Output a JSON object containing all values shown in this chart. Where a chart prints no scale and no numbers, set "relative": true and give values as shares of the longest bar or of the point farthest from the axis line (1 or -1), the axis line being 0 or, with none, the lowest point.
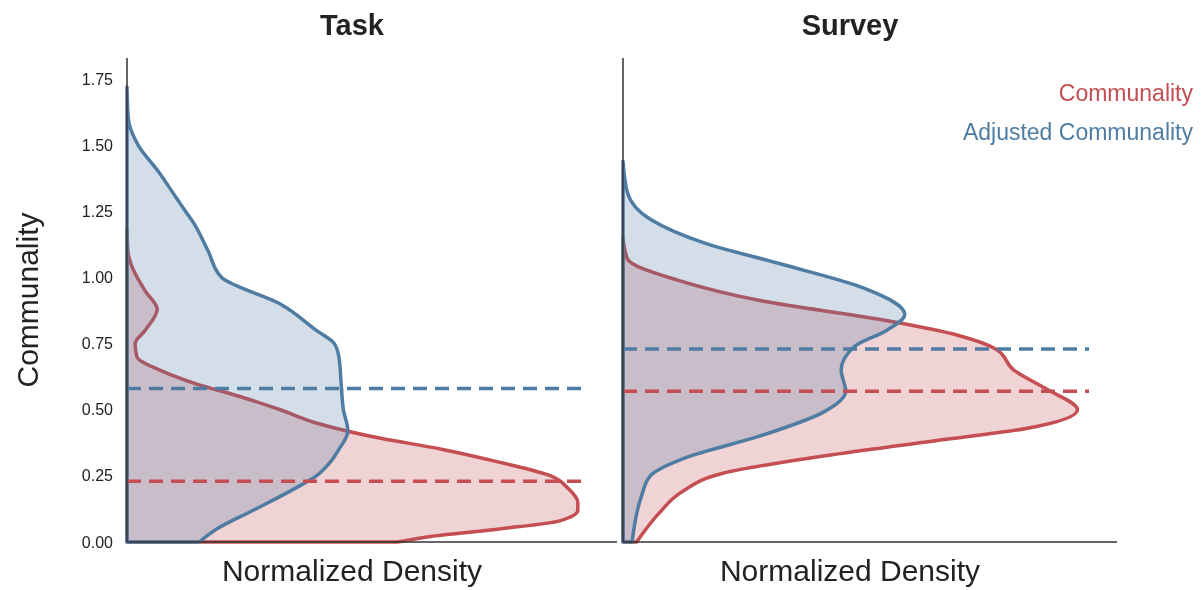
{
  "chart_data": [
    {
      "type": "area",
      "orientation": "horizontal",
      "relative": true,
      "title": "Task",
      "xlabel": "Normalized Density",
      "ylabel": "Communality",
      "ylim": [
        0,
        1.83
      ],
      "yticks": [
        {
          "value": 0,
          "label": "0.00"
        },
        {
          "value": 0.25,
          "label": "0.25"
        },
        {
          "value": 0.5,
          "label": "0.50"
        },
        {
          "value": 0.75,
          "label": "0.75"
        },
        {
          "value": 1,
          "label": "1.00"
        },
        {
          "value": 1.25,
          "label": "1.25"
        },
        {
          "value": 1.5,
          "label": "1.50"
        },
        {
          "value": 1.75,
          "label": "1.75"
        }
      ],
      "tick_labels": "y",
      "legend": false,
      "series": [
        {
          "color": "#c44e52",
          "x": [
            0,
            0.02,
            0.05,
            0.08,
            0.12,
            0.15,
            0.2,
            0.25,
            0.3,
            0.35,
            0.4,
            0.45,
            0.5,
            0.55,
            0.6,
            0.65,
            0.7,
            0.75,
            0.8,
            0.88,
            0.95,
            1.05,
            1.1,
            1.18
          ],
          "values": [
            0.6,
            0.67,
            0.83,
            0.96,
            1,
            1,
            0.98,
            0.94,
            0.83,
            0.7,
            0.54,
            0.42,
            0.34,
            0.25,
            0.15,
            0.073,
            0.022,
            0.018,
            0.04,
            0.067,
            0.04,
            0.009,
            0.002,
            0
          ]
        },
        {
          "color": "#4f7ca3",
          "x": [
            0,
            0.05,
            0.12,
            0.2,
            0.25,
            0.3,
            0.35,
            0.42,
            0.5,
            0.6,
            0.7,
            0.75,
            0.8,
            0.9,
            1,
            1.1,
            1.2,
            1.25,
            1.3,
            1.4,
            1.5,
            1.6,
            1.72
          ],
          "values": [
            0.16,
            0.2,
            0.28,
            0.37,
            0.42,
            0.45,
            0.47,
            0.49,
            0.48,
            0.475,
            0.47,
            0.46,
            0.42,
            0.34,
            0.21,
            0.18,
            0.15,
            0.13,
            0.11,
            0.07,
            0.025,
            0.003,
            0
          ]
        }
      ],
      "ref_lines": [
        {
          "axis": "y",
          "value": 0.58,
          "color": "#4f7ca3",
          "line_style": "dashed"
        },
        {
          "axis": "y",
          "value": 0.23,
          "color": "#c44e52",
          "line_style": "dashed"
        }
      ]
    },
    {
      "type": "area",
      "orientation": "horizontal",
      "relative": true,
      "title": "Survey",
      "xlabel": "Normalized Density",
      "ylim": [
        0,
        1.83
      ],
      "tick_labels": false,
      "legend": "top right",
      "series": [
        {
          "name": "Communality",
          "color": "#c44e52",
          "x": [
            0,
            0.11,
            0.19,
            0.26,
            0.33,
            0.39,
            0.43,
            0.5,
            0.58,
            0.65,
            0.73,
            0.78,
            0.84,
            0.91,
            0.99,
            1.07,
            1.15
          ],
          "values": [
            0.03,
            0.08,
            0.13,
            0.22,
            0.46,
            0.72,
            0.89,
            1,
            0.93,
            0.86,
            0.82,
            0.74,
            0.57,
            0.31,
            0.12,
            0.01,
            0
          ]
        },
        {
          "name": "Adjusted Communality",
          "color": "#4f7ca3",
          "x": [
            0,
            0.17,
            0.25,
            0.32,
            0.4,
            0.49,
            0.57,
            0.65,
            0.74,
            0.8,
            0.86,
            0.96,
            1.05,
            1.13,
            1.22,
            1.32,
            1.44
          ],
          "values": [
            0.02,
            0.04,
            0.06,
            0.14,
            0.3,
            0.44,
            0.49,
            0.48,
            0.51,
            0.58,
            0.62,
            0.53,
            0.35,
            0.18,
            0.06,
            0.01,
            0
          ]
        }
      ],
      "ref_lines": [
        {
          "axis": "y",
          "value": 0.73,
          "color": "#4f7ca3",
          "line_style": "dashed"
        },
        {
          "axis": "y",
          "value": 0.57,
          "color": "#c44e52",
          "line_style": "dashed"
        }
      ]
    }
  ]
}
